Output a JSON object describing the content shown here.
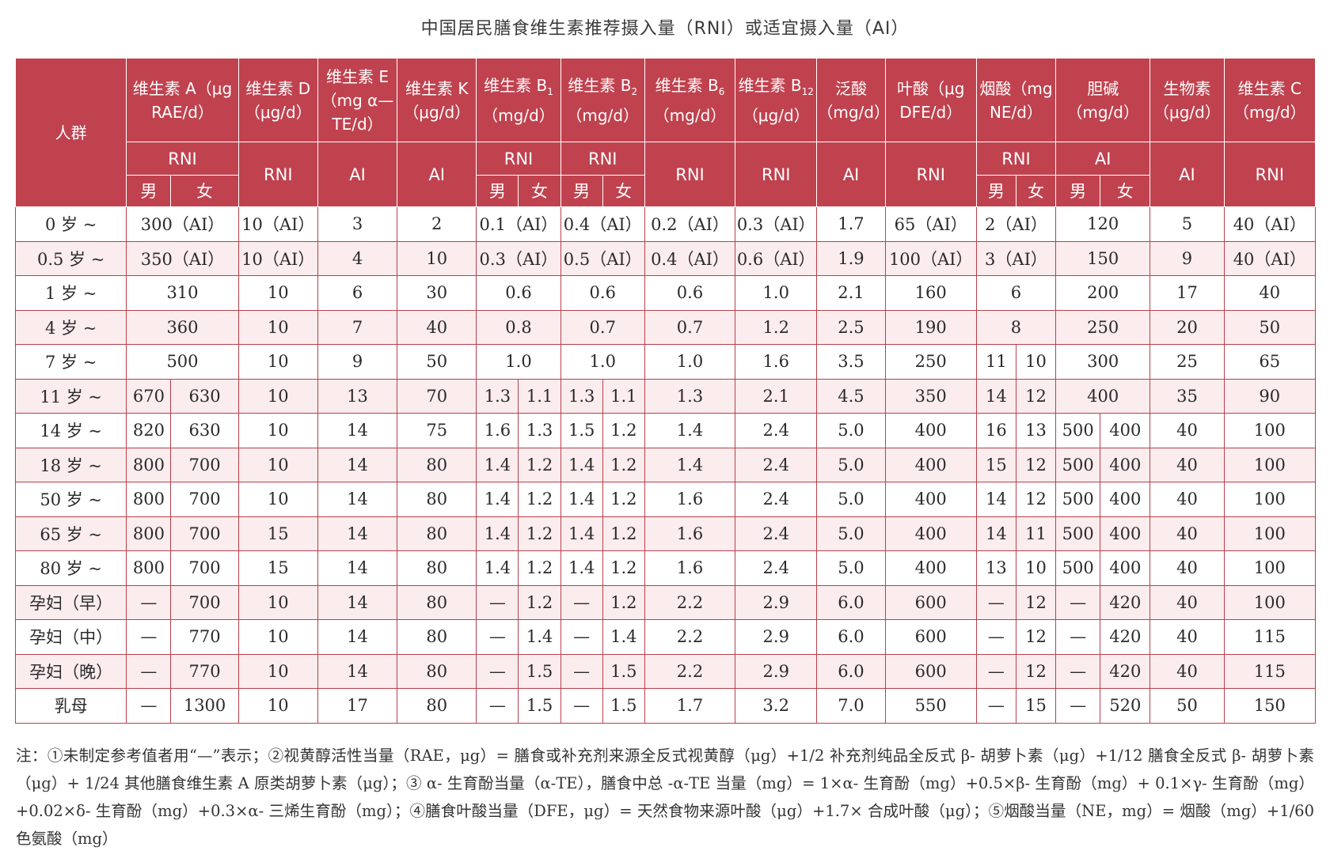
{
  "title": "中国居民膳食维生素推荐摄入量（RNI）或适宜摄入量（AI）",
  "header": {
    "group": "人群",
    "vitA": "维生素 A（μg RAE/d）",
    "vitD": "维生素 D（μg/d）",
    "vitE": "维生素 E（mg α—TE/d）",
    "vitK": "维生素 K（μg/d）",
    "vitB1_name": "维生素 B",
    "vitB1_sub": "1",
    "vitB1_unit": "（mg/d）",
    "vitB2_name": "维生素 B",
    "vitB2_sub": "2",
    "vitB2_unit": "（mg/d）",
    "vitB6_name": "维生素 B",
    "vitB6_sub": "6",
    "vitB6_unit": "（mg/d）",
    "vitB12_name": "维生素 B",
    "vitB12_sub": "12",
    "vitB12_unit": "（μg/d）",
    "pantothenic": "泛酸（mg/d）",
    "folate": "叶酸（μg DFE/d）",
    "niacin": "烟酸（mg NE/d）",
    "choline": "胆碱（mg/d）",
    "biotin": "生物素（μg/d）",
    "vitC": "维生素 C（mg/d）",
    "rni": "RNI",
    "ai": "AI",
    "male": "男",
    "female": "女"
  },
  "rows": [
    {
      "group": "0 岁 ~",
      "cells": [
        {
          "t": "300（AI）",
          "s": 2
        },
        {
          "t": "10（AI）"
        },
        {
          "t": "3"
        },
        {
          "t": "2"
        },
        {
          "t": "0.1（AI）",
          "s": 2
        },
        {
          "t": "0.4（AI）",
          "s": 2
        },
        {
          "t": "0.2（AI）"
        },
        {
          "t": "0.3（AI）"
        },
        {
          "t": "1.7"
        },
        {
          "t": "65（AI）"
        },
        {
          "t": "2（AI）",
          "s": 2
        },
        {
          "t": "120",
          "s": 2
        },
        {
          "t": "5"
        },
        {
          "t": "40（AI）"
        }
      ]
    },
    {
      "group": "0.5 岁 ~",
      "cells": [
        {
          "t": "350（AI）",
          "s": 2
        },
        {
          "t": "10（AI）"
        },
        {
          "t": "4"
        },
        {
          "t": "10"
        },
        {
          "t": "0.3（AI）",
          "s": 2
        },
        {
          "t": "0.5（AI）",
          "s": 2
        },
        {
          "t": "0.4（AI）"
        },
        {
          "t": "0.6（AI）"
        },
        {
          "t": "1.9"
        },
        {
          "t": "100（AI）"
        },
        {
          "t": "3（AI）",
          "s": 2
        },
        {
          "t": "150",
          "s": 2
        },
        {
          "t": "9"
        },
        {
          "t": "40（AI）"
        }
      ]
    },
    {
      "group": "1 岁 ~",
      "cells": [
        {
          "t": "310",
          "s": 2
        },
        {
          "t": "10"
        },
        {
          "t": "6"
        },
        {
          "t": "30"
        },
        {
          "t": "0.6",
          "s": 2
        },
        {
          "t": "0.6",
          "s": 2
        },
        {
          "t": "0.6"
        },
        {
          "t": "1.0"
        },
        {
          "t": "2.1"
        },
        {
          "t": "160"
        },
        {
          "t": "6",
          "s": 2
        },
        {
          "t": "200",
          "s": 2
        },
        {
          "t": "17"
        },
        {
          "t": "40"
        }
      ]
    },
    {
      "group": "4 岁 ~",
      "cells": [
        {
          "t": "360",
          "s": 2
        },
        {
          "t": "10"
        },
        {
          "t": "7"
        },
        {
          "t": "40"
        },
        {
          "t": "0.8",
          "s": 2
        },
        {
          "t": "0.7",
          "s": 2
        },
        {
          "t": "0.7"
        },
        {
          "t": "1.2"
        },
        {
          "t": "2.5"
        },
        {
          "t": "190"
        },
        {
          "t": "8",
          "s": 2
        },
        {
          "t": "250",
          "s": 2
        },
        {
          "t": "20"
        },
        {
          "t": "50"
        }
      ]
    },
    {
      "group": "7 岁 ~",
      "cells": [
        {
          "t": "500",
          "s": 2
        },
        {
          "t": "10"
        },
        {
          "t": "9"
        },
        {
          "t": "50"
        },
        {
          "t": "1.0",
          "s": 2
        },
        {
          "t": "1.0",
          "s": 2
        },
        {
          "t": "1.0"
        },
        {
          "t": "1.6"
        },
        {
          "t": "3.5"
        },
        {
          "t": "250"
        },
        {
          "t": "11"
        },
        {
          "t": "10"
        },
        {
          "t": "300",
          "s": 2
        },
        {
          "t": "25"
        },
        {
          "t": "65"
        }
      ]
    },
    {
      "group": "11 岁 ~",
      "cells": [
        {
          "t": "670"
        },
        {
          "t": "630"
        },
        {
          "t": "10"
        },
        {
          "t": "13"
        },
        {
          "t": "70"
        },
        {
          "t": "1.3"
        },
        {
          "t": "1.1"
        },
        {
          "t": "1.3"
        },
        {
          "t": "1.1"
        },
        {
          "t": "1.3"
        },
        {
          "t": "2.1"
        },
        {
          "t": "4.5"
        },
        {
          "t": "350"
        },
        {
          "t": "14"
        },
        {
          "t": "12"
        },
        {
          "t": "400",
          "s": 2
        },
        {
          "t": "35"
        },
        {
          "t": "90"
        }
      ]
    },
    {
      "group": "14 岁 ~",
      "cells": [
        {
          "t": "820"
        },
        {
          "t": "630"
        },
        {
          "t": "10"
        },
        {
          "t": "14"
        },
        {
          "t": "75"
        },
        {
          "t": "1.6"
        },
        {
          "t": "1.3"
        },
        {
          "t": "1.5"
        },
        {
          "t": "1.2"
        },
        {
          "t": "1.4"
        },
        {
          "t": "2.4"
        },
        {
          "t": "5.0"
        },
        {
          "t": "400"
        },
        {
          "t": "16"
        },
        {
          "t": "13"
        },
        {
          "t": "500"
        },
        {
          "t": "400"
        },
        {
          "t": "40"
        },
        {
          "t": "100"
        }
      ]
    },
    {
      "group": "18 岁 ~",
      "cells": [
        {
          "t": "800"
        },
        {
          "t": "700"
        },
        {
          "t": "10"
        },
        {
          "t": "14"
        },
        {
          "t": "80"
        },
        {
          "t": "1.4"
        },
        {
          "t": "1.2"
        },
        {
          "t": "1.4"
        },
        {
          "t": "1.2"
        },
        {
          "t": "1.4"
        },
        {
          "t": "2.4"
        },
        {
          "t": "5.0"
        },
        {
          "t": "400"
        },
        {
          "t": "15"
        },
        {
          "t": "12"
        },
        {
          "t": "500"
        },
        {
          "t": "400"
        },
        {
          "t": "40"
        },
        {
          "t": "100"
        }
      ]
    },
    {
      "group": "50 岁 ~",
      "cells": [
        {
          "t": "800"
        },
        {
          "t": "700"
        },
        {
          "t": "10"
        },
        {
          "t": "14"
        },
        {
          "t": "80"
        },
        {
          "t": "1.4"
        },
        {
          "t": "1.2"
        },
        {
          "t": "1.4"
        },
        {
          "t": "1.2"
        },
        {
          "t": "1.6"
        },
        {
          "t": "2.4"
        },
        {
          "t": "5.0"
        },
        {
          "t": "400"
        },
        {
          "t": "14"
        },
        {
          "t": "12"
        },
        {
          "t": "500"
        },
        {
          "t": "400"
        },
        {
          "t": "40"
        },
        {
          "t": "100"
        }
      ]
    },
    {
      "group": "65 岁 ~",
      "cells": [
        {
          "t": "800"
        },
        {
          "t": "700"
        },
        {
          "t": "15"
        },
        {
          "t": "14"
        },
        {
          "t": "80"
        },
        {
          "t": "1.4"
        },
        {
          "t": "1.2"
        },
        {
          "t": "1.4"
        },
        {
          "t": "1.2"
        },
        {
          "t": "1.6"
        },
        {
          "t": "2.4"
        },
        {
          "t": "5.0"
        },
        {
          "t": "400"
        },
        {
          "t": "14"
        },
        {
          "t": "11"
        },
        {
          "t": "500"
        },
        {
          "t": "400"
        },
        {
          "t": "40"
        },
        {
          "t": "100"
        }
      ]
    },
    {
      "group": "80 岁 ~",
      "cells": [
        {
          "t": "800"
        },
        {
          "t": "700"
        },
        {
          "t": "15"
        },
        {
          "t": "14"
        },
        {
          "t": "80"
        },
        {
          "t": "1.4"
        },
        {
          "t": "1.2"
        },
        {
          "t": "1.4"
        },
        {
          "t": "1.2"
        },
        {
          "t": "1.6"
        },
        {
          "t": "2.4"
        },
        {
          "t": "5.0"
        },
        {
          "t": "400"
        },
        {
          "t": "13"
        },
        {
          "t": "10"
        },
        {
          "t": "500"
        },
        {
          "t": "400"
        },
        {
          "t": "40"
        },
        {
          "t": "100"
        }
      ]
    },
    {
      "group": "孕妇（早）",
      "cells": [
        {
          "t": "—"
        },
        {
          "t": "700"
        },
        {
          "t": "10"
        },
        {
          "t": "14"
        },
        {
          "t": "80"
        },
        {
          "t": "—"
        },
        {
          "t": "1.2"
        },
        {
          "t": "—"
        },
        {
          "t": "1.2"
        },
        {
          "t": "2.2"
        },
        {
          "t": "2.9"
        },
        {
          "t": "6.0"
        },
        {
          "t": "600"
        },
        {
          "t": "—"
        },
        {
          "t": "12"
        },
        {
          "t": "—"
        },
        {
          "t": "420"
        },
        {
          "t": "40"
        },
        {
          "t": "100"
        }
      ]
    },
    {
      "group": "孕妇（中）",
      "cells": [
        {
          "t": "—"
        },
        {
          "t": "770"
        },
        {
          "t": "10"
        },
        {
          "t": "14"
        },
        {
          "t": "80"
        },
        {
          "t": "—"
        },
        {
          "t": "1.4"
        },
        {
          "t": "—"
        },
        {
          "t": "1.4"
        },
        {
          "t": "2.2"
        },
        {
          "t": "2.9"
        },
        {
          "t": "6.0"
        },
        {
          "t": "600"
        },
        {
          "t": "—"
        },
        {
          "t": "12"
        },
        {
          "t": "—"
        },
        {
          "t": "420"
        },
        {
          "t": "40"
        },
        {
          "t": "115"
        }
      ]
    },
    {
      "group": "孕妇（晚）",
      "cells": [
        {
          "t": "—"
        },
        {
          "t": "770"
        },
        {
          "t": "10"
        },
        {
          "t": "14"
        },
        {
          "t": "80"
        },
        {
          "t": "—"
        },
        {
          "t": "1.5"
        },
        {
          "t": "—"
        },
        {
          "t": "1.5"
        },
        {
          "t": "2.2"
        },
        {
          "t": "2.9"
        },
        {
          "t": "6.0"
        },
        {
          "t": "600"
        },
        {
          "t": "—"
        },
        {
          "t": "12"
        },
        {
          "t": "—"
        },
        {
          "t": "420"
        },
        {
          "t": "40"
        },
        {
          "t": "115"
        }
      ]
    },
    {
      "group": "乳母",
      "cells": [
        {
          "t": "—"
        },
        {
          "t": "1300"
        },
        {
          "t": "10"
        },
        {
          "t": "17"
        },
        {
          "t": "80"
        },
        {
          "t": "—"
        },
        {
          "t": "1.5"
        },
        {
          "t": "—"
        },
        {
          "t": "1.5"
        },
        {
          "t": "1.7"
        },
        {
          "t": "3.2"
        },
        {
          "t": "7.0"
        },
        {
          "t": "550"
        },
        {
          "t": "—"
        },
        {
          "t": "15"
        },
        {
          "t": "—"
        },
        {
          "t": "520"
        },
        {
          "t": "50"
        },
        {
          "t": "150"
        }
      ]
    }
  ],
  "note": "注：①未制定参考值者用“—”表示；②视黄醇活性当量（RAE，μg）= 膳食或补充剂来源全反式视黄醇（μg）+1/2 补充剂纯品全反式 β- 胡萝卜素（μg）+1/12 膳食全反式 β- 胡萝卜素（μg）+ 1/24 其他膳食维生素 A 原类胡萝卜素（μg）；③ α- 生育酚当量（α-TE），膳食中总 -α-TE 当量（mg）= 1×α- 生育酚（mg）+0.5×β- 生育酚（mg）+ 0.1×γ- 生育酚（mg）+0.02×δ- 生育酚（mg）+0.3×α- 三烯生育酚（mg）；④膳食叶酸当量（DFE，μg）= 天然食物来源叶酸（μg）+1.7× 合成叶酸（μg）；⑤烟酸当量（NE，mg）= 烟酸（mg）+1/60 色氨酸（mg）",
  "colors": {
    "header_bg": "#c0424f",
    "grid": "#b9404b",
    "stripe": "#fbecee"
  }
}
